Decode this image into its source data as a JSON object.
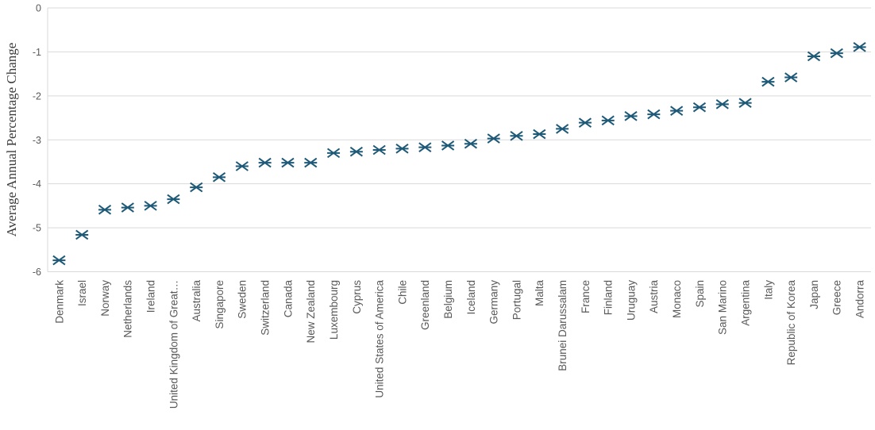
{
  "chart_data": {
    "type": "scatter",
    "marker_style": "asterisk-6point",
    "title": "",
    "xlabel": "",
    "ylabel": "Average Annual Percentage Change",
    "ylim": [
      -6,
      0
    ],
    "yticks": [
      0,
      -1,
      -2,
      -3,
      -4,
      -5,
      -6
    ],
    "grid": "horizontal",
    "legend": "none",
    "categories": [
      "Denmark",
      "Israel",
      "Norway",
      "Netherlands",
      "Ireland",
      "United Kingdom of Great…",
      "Australia",
      "Singapore",
      "Sweden",
      "Switzerland",
      "Canada",
      "New Zealand",
      "Luxembourg",
      "Cyprus",
      "United States of America",
      "Chile",
      "Greenland",
      "Belgium",
      "Iceland",
      "Germany",
      "Portugal",
      "Malta",
      "Brunei Darussalam",
      "France",
      "Finland",
      "Uruguay",
      "Austria",
      "Monaco",
      "Spain",
      "San Marino",
      "Argentina",
      "Italy",
      "Republic of Korea",
      "Japan",
      "Greece",
      "Andorra"
    ],
    "values": [
      -5.74,
      -5.16,
      -4.59,
      -4.54,
      -4.5,
      -4.35,
      -4.08,
      -3.85,
      -3.6,
      -3.52,
      -3.52,
      -3.52,
      -3.3,
      -3.27,
      -3.23,
      -3.2,
      -3.17,
      -3.13,
      -3.09,
      -2.97,
      -2.91,
      -2.87,
      -2.75,
      -2.61,
      -2.56,
      -2.46,
      -2.42,
      -2.34,
      -2.26,
      -2.19,
      -2.16,
      -1.68,
      -1.58,
      -1.1,
      -1.03,
      -0.89
    ],
    "colors": {
      "marker": "#1e5a78",
      "gridline": "#d9d9d9",
      "axis_line": "#d9d9d9",
      "tick_label": "#595959",
      "category_label": "#595959",
      "axis_title": "#3b3b3b",
      "background": "#ffffff"
    }
  }
}
